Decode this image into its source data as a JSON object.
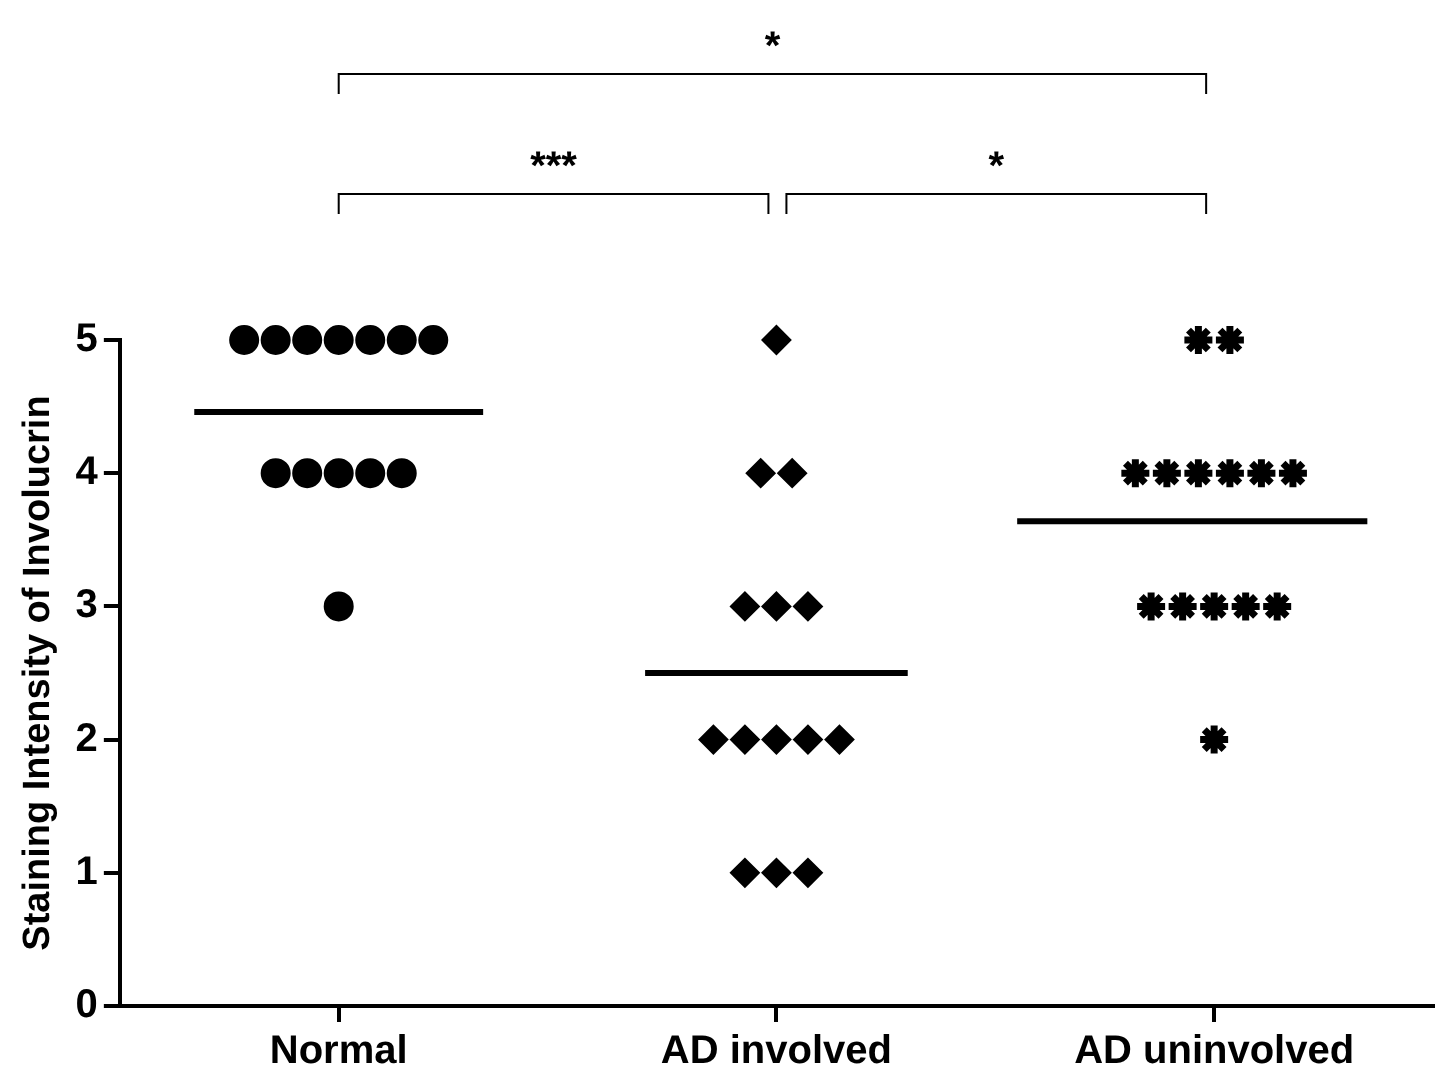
{
  "chart_data": {
    "type": "scatter",
    "ylabel": "Staining Intensity of Involucrin",
    "categories": [
      "Normal",
      "AD involved",
      "AD uninvolved"
    ],
    "ylim": [
      0,
      5
    ],
    "yticks": [
      0,
      1,
      2,
      3,
      4,
      5
    ],
    "grid": false,
    "legend": false,
    "annotations": [
      "*",
      "***",
      "*"
    ],
    "ref_lines": [
      {
        "axis": "y",
        "value": 4.46,
        "color": "#000000"
      },
      {
        "axis": "y",
        "value": 2.5,
        "color": "#000000"
      },
      {
        "axis": "y",
        "value": 3.64,
        "color": "#000000"
      }
    ],
    "series": [
      {
        "type": "scatter",
        "marker": "circle",
        "color": "#000000",
        "x": [
          "Normal",
          "Normal",
          "Normal",
          "Normal",
          "Normal",
          "Normal",
          "Normal",
          "Normal",
          "Normal",
          "Normal",
          "Normal",
          "Normal",
          "Normal"
        ],
        "values": [
          5,
          5,
          5,
          5,
          5,
          5,
          5,
          4,
          4,
          4,
          4,
          4,
          3
        ]
      },
      {
        "type": "scatter",
        "marker": "diamond",
        "color": "#000000",
        "x": [
          "AD involved",
          "AD involved",
          "AD involved",
          "AD involved",
          "AD involved",
          "AD involved",
          "AD involved",
          "AD involved",
          "AD involved",
          "AD involved",
          "AD involved",
          "AD involved",
          "AD involved",
          "AD involved"
        ],
        "values": [
          5,
          4,
          4,
          3,
          3,
          3,
          2,
          2,
          2,
          2,
          2,
          1,
          1,
          1
        ]
      },
      {
        "type": "scatter",
        "marker": "cross",
        "color": "#000000",
        "x": [
          "AD uninvolved",
          "AD uninvolved",
          "AD uninvolved",
          "AD uninvolved",
          "AD uninvolved",
          "AD uninvolved",
          "AD uninvolved",
          "AD uninvolved",
          "AD uninvolved",
          "AD uninvolved",
          "AD uninvolved",
          "AD uninvolved",
          "AD uninvolved",
          "AD uninvolved"
        ],
        "values": [
          5,
          5,
          4,
          4,
          4,
          4,
          4,
          4,
          3,
          3,
          3,
          3,
          3,
          2
        ]
      }
    ]
  }
}
